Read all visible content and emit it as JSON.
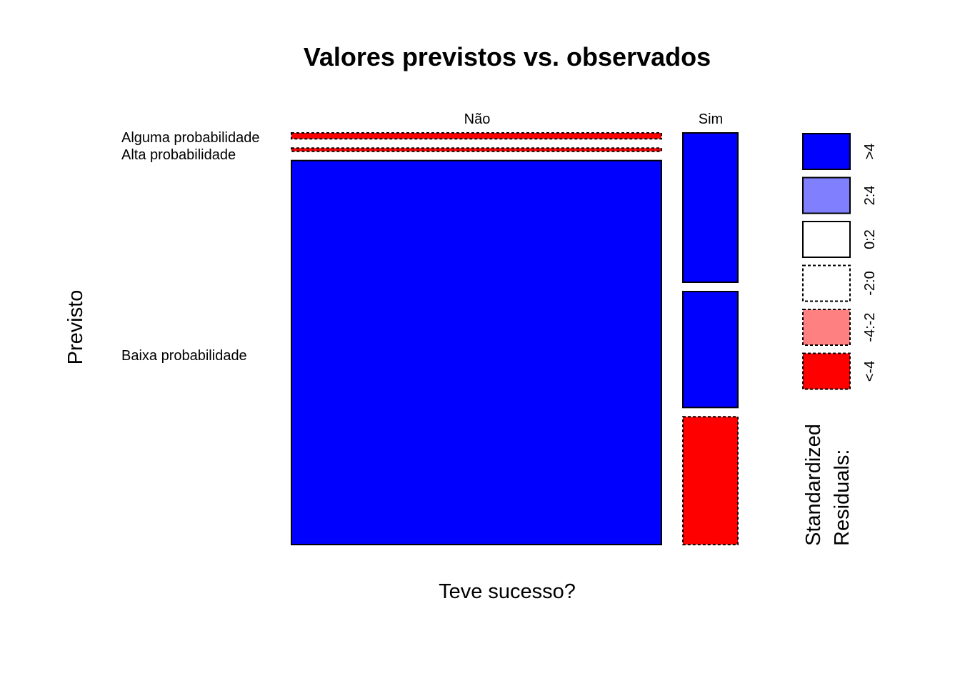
{
  "chart_data": {
    "type": "mosaic",
    "title": "Valores previstos vs. observados",
    "xlabel": "Teve sucesso?",
    "ylabel": "Previsto",
    "x_categories": [
      "Não",
      "Sim"
    ],
    "x_proportions": [
      0.87,
      0.13
    ],
    "y_categories": [
      "Alguma probabilidade",
      "Alta probabilidade",
      "Baixa probabilidade"
    ],
    "cells": [
      {
        "x": "Não",
        "y": "Alguma probabilidade",
        "proportion": 0.015,
        "residual_class": "<-4"
      },
      {
        "x": "Não",
        "y": "Alta probabilidade",
        "proportion": 0.008,
        "residual_class": "<-4"
      },
      {
        "x": "Não",
        "y": "Baixa probabilidade",
        "proportion": 0.977,
        "residual_class": ">4"
      },
      {
        "x": "Sim",
        "y": "Alguma probabilidade",
        "proportion": 0.38,
        "residual_class": ">4"
      },
      {
        "x": "Sim",
        "y": "Alta probabilidade",
        "proportion": 0.295,
        "residual_class": ">4"
      },
      {
        "x": "Sim",
        "y": "Baixa probabilidade",
        "proportion": 0.325,
        "residual_class": "<-4"
      }
    ],
    "legend": {
      "title_lines": [
        "Standardized",
        "Residuals:"
      ],
      "placement": "right",
      "items": [
        {
          "label": ">4",
          "color": "#0000ff",
          "dashed": false
        },
        {
          "label": "2:4",
          "color": "#8080ff",
          "dashed": false
        },
        {
          "label": "0:2",
          "color": "#ffffff",
          "dashed": false
        },
        {
          "label": "-2:0",
          "color": "#ffffff",
          "dashed": true
        },
        {
          "label": "-4:-2",
          "color": "#ff8080",
          "dashed": true
        },
        {
          "label": "<-4",
          "color": "#ff0000",
          "dashed": true
        }
      ]
    }
  }
}
